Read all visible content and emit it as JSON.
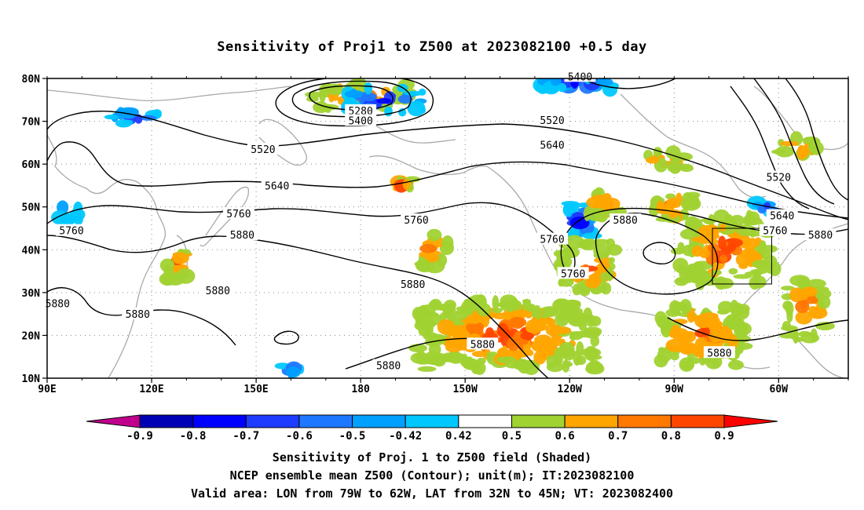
{
  "title": "Sensitivity of Proj1 to Z500 at 2023082100 +0.5 day",
  "map": {
    "lat_labels": [
      "80N",
      "70N",
      "60N",
      "50N",
      "40N",
      "30N",
      "20N",
      "10N"
    ],
    "lat_values": [
      80,
      70,
      60,
      50,
      40,
      30,
      20,
      10
    ],
    "lon_labels": [
      "90E",
      "120E",
      "150E",
      "180",
      "150W",
      "120W",
      "90W",
      "60W"
    ],
    "lon_values": [
      90,
      120,
      150,
      180,
      210,
      240,
      270,
      300
    ],
    "extent": {
      "lon_min": 90,
      "lon_max": 320,
      "lat_min": 10,
      "lat_max": 80
    },
    "valid_box": {
      "lon_w": 281,
      "lon_e": 298,
      "lat_s": 32,
      "lat_n": 45
    },
    "contour_labels": [
      {
        "text": "5400",
        "lon": 243,
        "lat": 80.5
      },
      {
        "text": "5280",
        "lon": 180,
        "lat": 72.5
      },
      {
        "text": "5400",
        "lon": 180,
        "lat": 70.2
      },
      {
        "text": "5520",
        "lon": 235,
        "lat": 70.3
      },
      {
        "text": "5520",
        "lon": 152,
        "lat": 63.5
      },
      {
        "text": "5640",
        "lon": 235,
        "lat": 64.5
      },
      {
        "text": "5520",
        "lon": 300,
        "lat": 57
      },
      {
        "text": "5640",
        "lon": 156,
        "lat": 55
      },
      {
        "text": "5760",
        "lon": 145,
        "lat": 48.5
      },
      {
        "text": "5760",
        "lon": 196,
        "lat": 47
      },
      {
        "text": "5880",
        "lon": 256,
        "lat": 47
      },
      {
        "text": "5640",
        "lon": 301,
        "lat": 48
      },
      {
        "text": "5760",
        "lon": 97,
        "lat": 44.5
      },
      {
        "text": "5760",
        "lon": 299,
        "lat": 44.5
      },
      {
        "text": "5880",
        "lon": 312,
        "lat": 43.5
      },
      {
        "text": "5880",
        "lon": 146,
        "lat": 43.5
      },
      {
        "text": "5760",
        "lon": 235,
        "lat": 42.5
      },
      {
        "text": "5760",
        "lon": 241,
        "lat": 34.5
      },
      {
        "text": "5880",
        "lon": 139,
        "lat": 30.5
      },
      {
        "text": "5880",
        "lon": 195,
        "lat": 32
      },
      {
        "text": "5880",
        "lon": 93,
        "lat": 27.5
      },
      {
        "text": "5880",
        "lon": 116,
        "lat": 25
      },
      {
        "text": "5880",
        "lon": 215,
        "lat": 18
      },
      {
        "text": "5880",
        "lon": 283,
        "lat": 16
      },
      {
        "text": "5880",
        "lon": 188,
        "lat": 13
      }
    ]
  },
  "colorbar": {
    "labels": [
      "-0.9",
      "-0.8",
      "-0.7",
      "-0.6",
      "-0.5",
      "-0.42",
      "0.42",
      "0.5",
      "0.6",
      "0.7",
      "0.8",
      "0.9"
    ],
    "colors": [
      "#c0008c",
      "#0000b4",
      "#0000ff",
      "#1e3cff",
      "#1e78ff",
      "#00a0ff",
      "#00c8ff",
      "#ffffff",
      "#a0d232",
      "#ffa500",
      "#ff7800",
      "#ff4600",
      "#ff0000",
      "#f0a0c8"
    ]
  },
  "captions": [
    "Sensitivity of Proj. 1 to Z500 field (Shaded)",
    "NCEP ensemble mean Z500 (Contour); unit(m); IT:2023082100",
    "Valid area: LON from 79W to 62W, LAT from 32N to 45N; VT: 2023082400"
  ]
}
